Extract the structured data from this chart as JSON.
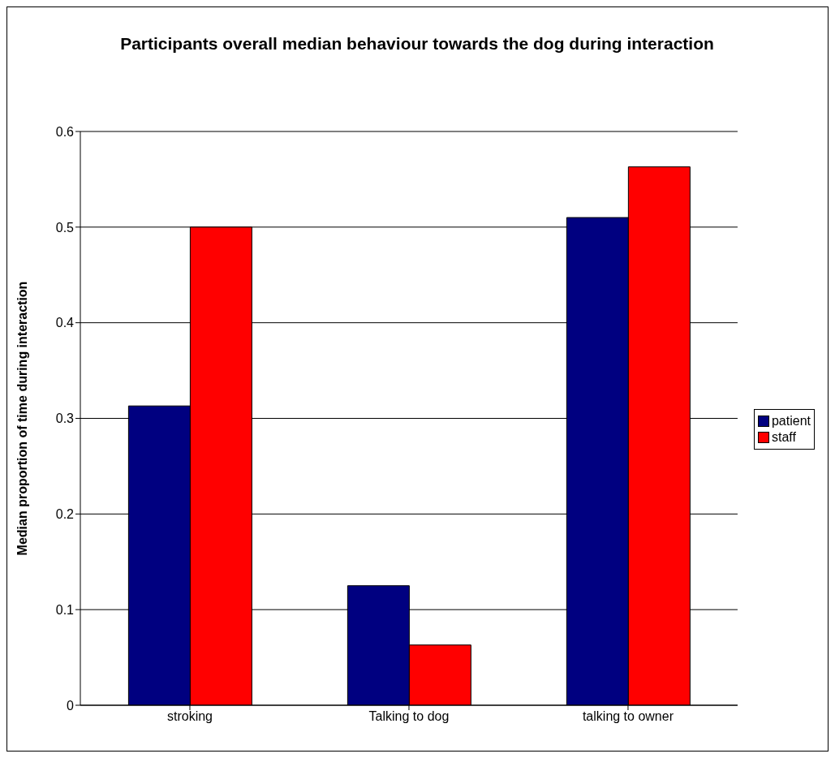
{
  "chart_data": {
    "type": "bar",
    "title": "Participants overall median behaviour towards the dog during interaction",
    "ylabel": "Median proportion of time during interaction",
    "categories": [
      "stroking",
      "Talking to dog",
      "talking to owner"
    ],
    "series": [
      {
        "name": "patient",
        "color": "#000080",
        "values": [
          0.313,
          0.125,
          0.51
        ]
      },
      {
        "name": "staff",
        "color": "#ff0000",
        "values": [
          0.5,
          0.063,
          0.563
        ]
      }
    ],
    "ylim": [
      0,
      0.6
    ],
    "yticks": [
      0,
      0.1,
      0.2,
      0.3,
      0.4,
      0.5,
      0.6
    ],
    "grid": "y",
    "legend": "right"
  }
}
